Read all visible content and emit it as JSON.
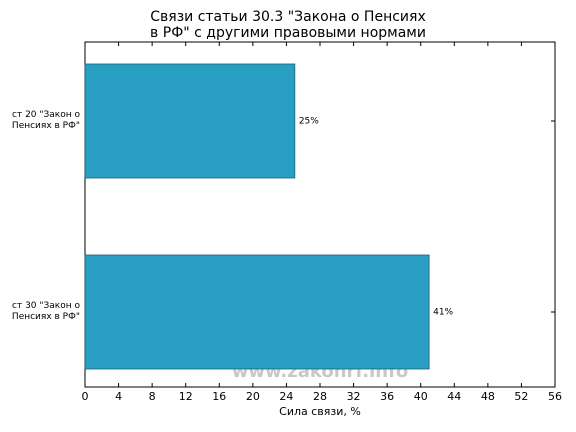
{
  "chart_data": {
    "type": "barh",
    "title": "Связи статьи 30.3 \"Закона о Пенсиях\nв РФ\" с другими правовыми нормами",
    "categories": [
      "ст 20 \"Закон о\nПенсиях в РФ\"",
      "ст 30 \"Закон о\nПенсиях в РФ\""
    ],
    "values": [
      25,
      41
    ],
    "value_labels": [
      "25%",
      "41%"
    ],
    "color": "#2a9fc4",
    "xlabel": "Сила связи, %",
    "xlim": [
      0,
      56
    ],
    "xticks": [
      0,
      4,
      8,
      12,
      16,
      20,
      24,
      28,
      32,
      36,
      40,
      44,
      48,
      52,
      56
    ],
    "watermark": "www.zakonrf.info"
  }
}
